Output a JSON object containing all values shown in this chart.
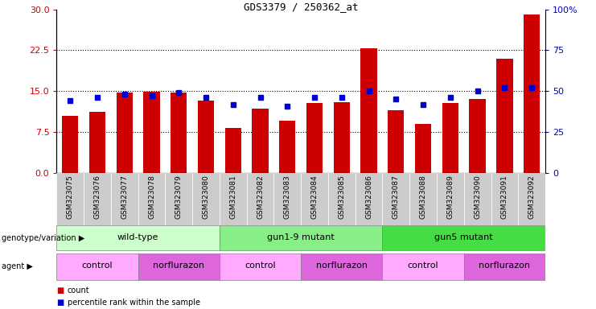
{
  "title": "GDS3379 / 250362_at",
  "samples": [
    "GSM323075",
    "GSM323076",
    "GSM323077",
    "GSM323078",
    "GSM323079",
    "GSM323080",
    "GSM323081",
    "GSM323082",
    "GSM323083",
    "GSM323084",
    "GSM323085",
    "GSM323086",
    "GSM323087",
    "GSM323088",
    "GSM323089",
    "GSM323090",
    "GSM323091",
    "GSM323092"
  ],
  "counts": [
    10.5,
    11.2,
    14.8,
    14.9,
    14.7,
    13.2,
    8.2,
    11.8,
    9.6,
    12.8,
    13.0,
    22.8,
    11.5,
    9.0,
    12.8,
    13.6,
    21.0,
    29.0
  ],
  "percentiles": [
    44,
    46,
    48,
    47,
    49,
    46,
    42,
    46,
    41,
    46,
    46,
    50,
    45,
    42,
    46,
    50,
    52,
    52
  ],
  "ylim_left": [
    0,
    30
  ],
  "ylim_right": [
    0,
    100
  ],
  "yticks_left": [
    0,
    7.5,
    15,
    22.5,
    30
  ],
  "yticks_right": [
    0,
    25,
    50,
    75,
    100
  ],
  "bar_color": "#cc0000",
  "marker_color": "#0000cc",
  "genotype_groups": [
    {
      "label": "wild-type",
      "start": 0,
      "end": 5,
      "color": "#ccffcc"
    },
    {
      "label": "gun1-9 mutant",
      "start": 6,
      "end": 11,
      "color": "#88ee88"
    },
    {
      "label": "gun5 mutant",
      "start": 12,
      "end": 17,
      "color": "#44dd44"
    }
  ],
  "agent_groups": [
    {
      "label": "control",
      "start": 0,
      "end": 2,
      "color": "#ffaaff"
    },
    {
      "label": "norflurazon",
      "start": 3,
      "end": 5,
      "color": "#dd66dd"
    },
    {
      "label": "control",
      "start": 6,
      "end": 8,
      "color": "#ffaaff"
    },
    {
      "label": "norflurazon",
      "start": 9,
      "end": 11,
      "color": "#dd66dd"
    },
    {
      "label": "control",
      "start": 12,
      "end": 14,
      "color": "#ffaaff"
    },
    {
      "label": "norflurazon",
      "start": 15,
      "end": 17,
      "color": "#dd66dd"
    }
  ],
  "legend_count_color": "#cc0000",
  "legend_pct_color": "#0000cc",
  "xtick_bg_color": "#cccccc",
  "right_axis_top_label": "100%"
}
